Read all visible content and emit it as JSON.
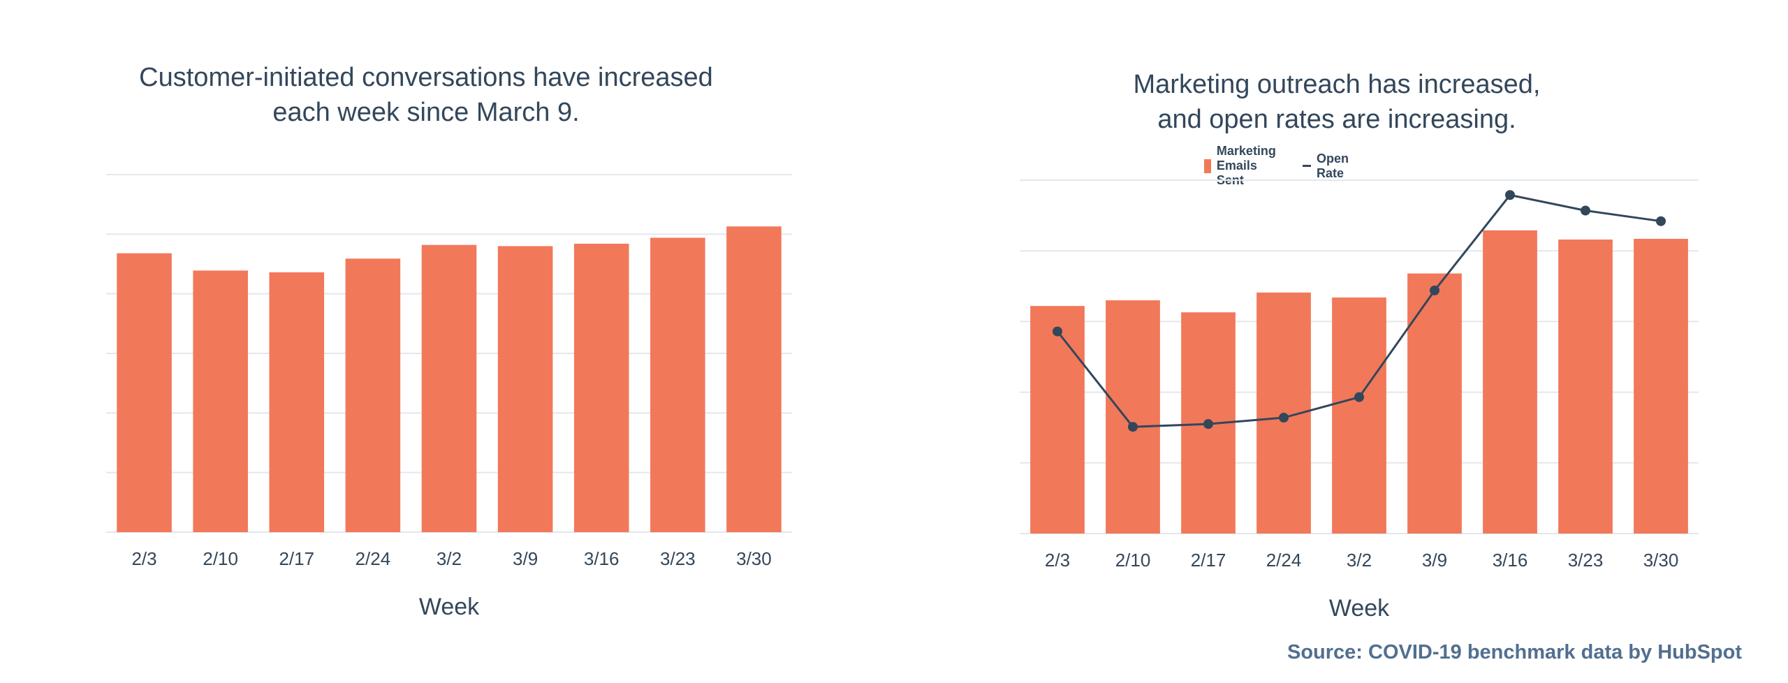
{
  "colors": {
    "bar": "#f2785a",
    "line": "#33475b",
    "grid": "#e3e7eb",
    "text": "#33475b",
    "source": "#516f90"
  },
  "left_chart": {
    "title_line1": "Customer-initiated conversations have increased",
    "title_line2": "each week since March 9."
  },
  "right_chart": {
    "title_line1": "Marketing outreach has increased,",
    "title_line2": "and open rates are increasing.",
    "legend_bar": "Marketing Emails Sent",
    "legend_line": "Open Rate"
  },
  "source": "Source: COVID-19 benchmark data by HubSpot",
  "chart_data": [
    {
      "type": "bar",
      "title": "Customer-initiated conversations have increased each week since March 9.",
      "categories": [
        "2/3",
        "2/10",
        "2/17",
        "2/24",
        "3/2",
        "3/9",
        "3/16",
        "3/23",
        "3/30"
      ],
      "values": [
        4.68,
        4.39,
        4.36,
        4.59,
        4.82,
        4.8,
        4.84,
        4.94,
        5.13
      ],
      "xlabel": "Week",
      "ylabel": "",
      "ylim": [
        0,
        6
      ],
      "grid": true,
      "y_tick_labels_shown": false
    },
    {
      "type": "bar",
      "title": "Marketing outreach has increased, and open rates are increasing.",
      "categories": [
        "2/3",
        "2/10",
        "2/17",
        "2/24",
        "3/2",
        "3/9",
        "3/16",
        "3/23",
        "3/30"
      ],
      "series": [
        {
          "name": "Marketing Emails Sent",
          "type": "bar",
          "values": [
            3.22,
            3.3,
            3.13,
            3.41,
            3.34,
            3.68,
            4.29,
            4.16,
            4.17
          ]
        },
        {
          "name": "Open Rate",
          "type": "line",
          "values": [
            2.86,
            1.51,
            1.55,
            1.64,
            1.93,
            3.44,
            4.79,
            4.57,
            4.42
          ]
        }
      ],
      "xlabel": "Week",
      "ylabel": "",
      "ylim": [
        0,
        5
      ],
      "grid": true,
      "legend": "top-center",
      "y_tick_labels_shown": false
    }
  ]
}
